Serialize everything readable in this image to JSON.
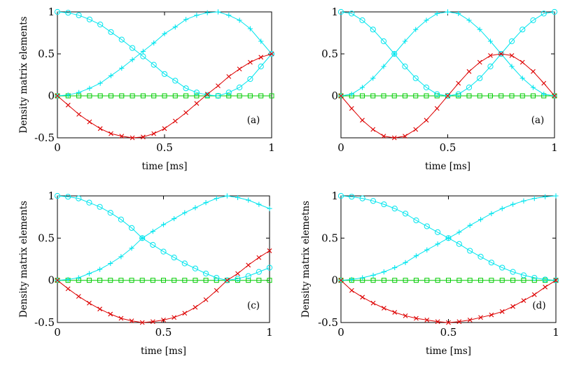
{
  "colors": {
    "cyan": "#00e5ee",
    "red": "#dd0000",
    "green": "#00cc00",
    "axis": "#000000"
  },
  "chart_data": [
    {
      "type": "line",
      "panel_label": "(a)",
      "xlabel": "time [ms]",
      "ylabel": "Density matrix elements",
      "xlim": [
        0,
        1
      ],
      "ylim": [
        -0.5,
        1
      ],
      "xticks": [
        0,
        0.5,
        1
      ],
      "xtick_labels": [
        "0",
        "0.5",
        "1"
      ],
      "yticks": [
        -0.5,
        0,
        0.5,
        1
      ],
      "ytick_labels": [
        "-0.5",
        "0",
        "0.5",
        "1"
      ],
      "series": [
        {
          "name": "plus",
          "color": "cyan",
          "marker": "+",
          "x": [
            0.0,
            0.05,
            0.1,
            0.15,
            0.2,
            0.25,
            0.3,
            0.35,
            0.4,
            0.45,
            0.5,
            0.55,
            0.6,
            0.65,
            0.7,
            0.75,
            0.8,
            0.85,
            0.9,
            0.95,
            1.0
          ],
          "values": [
            0,
            0.01,
            0.04,
            0.09,
            0.15,
            0.24,
            0.33,
            0.43,
            0.53,
            0.63,
            0.74,
            0.82,
            0.91,
            0.96,
            0.99,
            1.0,
            0.96,
            0.9,
            0.8,
            0.65,
            0.5
          ]
        },
        {
          "name": "circle",
          "color": "cyan",
          "marker": "o",
          "x": [
            0.0,
            0.05,
            0.1,
            0.15,
            0.2,
            0.25,
            0.3,
            0.35,
            0.4,
            0.45,
            0.5,
            0.55,
            0.6,
            0.65,
            0.7,
            0.75,
            0.8,
            0.85,
            0.9,
            0.95,
            1.0
          ],
          "values": [
            1,
            0.99,
            0.96,
            0.91,
            0.85,
            0.76,
            0.67,
            0.57,
            0.47,
            0.37,
            0.26,
            0.18,
            0.09,
            0.04,
            0.01,
            0.0,
            0.04,
            0.1,
            0.2,
            0.35,
            0.5
          ]
        },
        {
          "name": "cross",
          "color": "red",
          "marker": "x",
          "x": [
            0.0,
            0.05,
            0.1,
            0.15,
            0.2,
            0.25,
            0.3,
            0.35,
            0.4,
            0.45,
            0.5,
            0.55,
            0.6,
            0.65,
            0.7,
            0.75,
            0.8,
            0.85,
            0.9,
            0.95,
            1.0
          ],
          "values": [
            0,
            -0.11,
            -0.22,
            -0.31,
            -0.39,
            -0.45,
            -0.48,
            -0.5,
            -0.49,
            -0.45,
            -0.39,
            -0.3,
            -0.2,
            -0.09,
            0.02,
            0.12,
            0.23,
            0.32,
            0.4,
            0.46,
            0.5
          ]
        },
        {
          "name": "square",
          "color": "green",
          "marker": "s",
          "x": [
            0.0,
            0.05,
            0.1,
            0.15,
            0.2,
            0.25,
            0.3,
            0.35,
            0.4,
            0.45,
            0.5,
            0.55,
            0.6,
            0.65,
            0.7,
            0.75,
            0.8,
            0.85,
            0.9,
            0.95,
            1.0
          ],
          "values": [
            0,
            0,
            0,
            0,
            0,
            0,
            0,
            0,
            0,
            0,
            0,
            0,
            0,
            0,
            0,
            0,
            0,
            0,
            0,
            0,
            0
          ]
        }
      ]
    },
    {
      "type": "line",
      "panel_label": "(a)",
      "xlabel": "time [ms]",
      "ylabel": "",
      "xlim": [
        0,
        1
      ],
      "ylim": [
        -0.5,
        1
      ],
      "xticks": [
        0,
        0.5,
        1
      ],
      "xtick_labels": [
        "0",
        "0.5",
        "1"
      ],
      "yticks": [
        0,
        0.5,
        1
      ],
      "ytick_labels": [
        "0",
        "0.5",
        "1"
      ],
      "series": [
        {
          "name": "plus",
          "color": "cyan",
          "marker": "+",
          "x": [
            0.0,
            0.05,
            0.1,
            0.15,
            0.2,
            0.25,
            0.3,
            0.35,
            0.4,
            0.45,
            0.5,
            0.55,
            0.6,
            0.65,
            0.7,
            0.75,
            0.8,
            0.85,
            0.9,
            0.95,
            1.0
          ],
          "values": [
            0,
            0.02,
            0.1,
            0.21,
            0.35,
            0.5,
            0.65,
            0.79,
            0.9,
            0.98,
            1.0,
            0.98,
            0.9,
            0.79,
            0.65,
            0.5,
            0.35,
            0.21,
            0.1,
            0.02,
            0
          ]
        },
        {
          "name": "circle",
          "color": "cyan",
          "marker": "o",
          "x": [
            0.0,
            0.05,
            0.1,
            0.15,
            0.2,
            0.25,
            0.3,
            0.35,
            0.4,
            0.45,
            0.5,
            0.55,
            0.6,
            0.65,
            0.7,
            0.75,
            0.8,
            0.85,
            0.9,
            0.95,
            1.0
          ],
          "values": [
            1,
            0.98,
            0.9,
            0.79,
            0.65,
            0.5,
            0.35,
            0.21,
            0.1,
            0.02,
            0,
            0.02,
            0.1,
            0.21,
            0.35,
            0.5,
            0.65,
            0.79,
            0.9,
            0.98,
            1.0
          ]
        },
        {
          "name": "cross",
          "color": "red",
          "marker": "x",
          "x": [
            0.0,
            0.05,
            0.1,
            0.15,
            0.2,
            0.25,
            0.3,
            0.35,
            0.4,
            0.45,
            0.5,
            0.55,
            0.6,
            0.65,
            0.7,
            0.75,
            0.8,
            0.85,
            0.9,
            0.95,
            1.0
          ],
          "values": [
            0,
            -0.15,
            -0.29,
            -0.4,
            -0.48,
            -0.5,
            -0.48,
            -0.4,
            -0.29,
            -0.15,
            0,
            0.15,
            0.29,
            0.4,
            0.48,
            0.5,
            0.48,
            0.4,
            0.29,
            0.15,
            0
          ]
        },
        {
          "name": "square",
          "color": "green",
          "marker": "s",
          "x": [
            0.0,
            0.05,
            0.1,
            0.15,
            0.2,
            0.25,
            0.3,
            0.35,
            0.4,
            0.45,
            0.5,
            0.55,
            0.6,
            0.65,
            0.7,
            0.75,
            0.8,
            0.85,
            0.9,
            0.95,
            1.0
          ],
          "values": [
            0,
            0,
            0,
            0,
            0,
            0,
            0,
            0,
            0,
            0,
            0,
            0,
            0,
            0,
            0,
            0,
            0,
            0,
            0,
            0,
            0
          ]
        }
      ]
    },
    {
      "type": "line",
      "panel_label": "(c)",
      "xlabel": "time [ms]",
      "ylabel": "Density matrix elements",
      "xlim": [
        0,
        1
      ],
      "ylim": [
        -0.5,
        1
      ],
      "xticks": [
        0,
        0.5,
        1
      ],
      "xtick_labels": [
        "0",
        "0.5",
        "1"
      ],
      "yticks": [
        -0.5,
        0,
        0.5,
        1
      ],
      "ytick_labels": [
        "-0.5",
        "0",
        "0.5",
        "1"
      ],
      "series": [
        {
          "name": "plus",
          "color": "cyan",
          "marker": "+",
          "x": [
            0.0,
            0.05,
            0.1,
            0.15,
            0.2,
            0.25,
            0.3,
            0.35,
            0.4,
            0.45,
            0.5,
            0.55,
            0.6,
            0.65,
            0.7,
            0.75,
            0.8,
            0.85,
            0.9,
            0.95,
            1.0
          ],
          "values": [
            0,
            0.01,
            0.03,
            0.08,
            0.13,
            0.2,
            0.28,
            0.38,
            0.5,
            0.58,
            0.66,
            0.73,
            0.8,
            0.86,
            0.92,
            0.97,
            1.0,
            0.98,
            0.95,
            0.9,
            0.85
          ]
        },
        {
          "name": "circle",
          "color": "cyan",
          "marker": "o",
          "x": [
            0.0,
            0.05,
            0.1,
            0.15,
            0.2,
            0.25,
            0.3,
            0.35,
            0.4,
            0.45,
            0.5,
            0.55,
            0.6,
            0.65,
            0.7,
            0.75,
            0.8,
            0.85,
            0.9,
            0.95,
            1.0
          ],
          "values": [
            1,
            0.99,
            0.97,
            0.92,
            0.87,
            0.8,
            0.72,
            0.62,
            0.5,
            0.42,
            0.34,
            0.27,
            0.2,
            0.14,
            0.08,
            0.03,
            0,
            0.02,
            0.05,
            0.1,
            0.15
          ]
        },
        {
          "name": "cross",
          "color": "red",
          "marker": "x",
          "x": [
            0.0,
            0.05,
            0.1,
            0.15,
            0.2,
            0.25,
            0.3,
            0.35,
            0.4,
            0.45,
            0.5,
            0.55,
            0.6,
            0.65,
            0.7,
            0.75,
            0.8,
            0.85,
            0.9,
            0.95,
            1.0
          ],
          "values": [
            0,
            -0.1,
            -0.19,
            -0.27,
            -0.34,
            -0.4,
            -0.45,
            -0.48,
            -0.5,
            -0.49,
            -0.47,
            -0.44,
            -0.39,
            -0.32,
            -0.23,
            -0.12,
            0,
            0.08,
            0.18,
            0.27,
            0.35
          ]
        },
        {
          "name": "square",
          "color": "green",
          "marker": "s",
          "x": [
            0.0,
            0.05,
            0.1,
            0.15,
            0.2,
            0.25,
            0.3,
            0.35,
            0.4,
            0.45,
            0.5,
            0.55,
            0.6,
            0.65,
            0.7,
            0.75,
            0.8,
            0.85,
            0.9,
            0.95,
            1.0
          ],
          "values": [
            0,
            0,
            0,
            0,
            0,
            0,
            0,
            0,
            0,
            0,
            0,
            0,
            0,
            0,
            0,
            0,
            0,
            0,
            0,
            0,
            0
          ]
        }
      ]
    },
    {
      "type": "line",
      "panel_label": "(d)",
      "xlabel": "time [ms]",
      "ylabel": "Density matrix elemetns",
      "xlim": [
        0,
        1
      ],
      "ylim": [
        -0.5,
        1
      ],
      "xticks": [
        0,
        0.5,
        1
      ],
      "xtick_labels": [
        "0",
        "0.5",
        "1"
      ],
      "yticks": [
        -0.5,
        0,
        0.5,
        1
      ],
      "ytick_labels": [
        "-0.5",
        "0",
        "0.5",
        "1"
      ],
      "series": [
        {
          "name": "plus",
          "color": "cyan",
          "marker": "+",
          "x": [
            0.0,
            0.05,
            0.1,
            0.15,
            0.2,
            0.25,
            0.3,
            0.35,
            0.4,
            0.45,
            0.5,
            0.55,
            0.6,
            0.65,
            0.7,
            0.75,
            0.8,
            0.85,
            0.9,
            0.95,
            1.0
          ],
          "values": [
            0,
            0.01,
            0.03,
            0.06,
            0.1,
            0.15,
            0.21,
            0.29,
            0.36,
            0.43,
            0.5,
            0.57,
            0.65,
            0.72,
            0.79,
            0.85,
            0.9,
            0.94,
            0.97,
            0.99,
            1.0
          ]
        },
        {
          "name": "circle",
          "color": "cyan",
          "marker": "o",
          "x": [
            0.0,
            0.05,
            0.1,
            0.15,
            0.2,
            0.25,
            0.3,
            0.35,
            0.4,
            0.45,
            0.5,
            0.55,
            0.6,
            0.65,
            0.7,
            0.75,
            0.8,
            0.85,
            0.9,
            0.95,
            1.0
          ],
          "values": [
            1,
            0.99,
            0.97,
            0.94,
            0.9,
            0.85,
            0.79,
            0.71,
            0.64,
            0.57,
            0.5,
            0.43,
            0.35,
            0.28,
            0.21,
            0.15,
            0.1,
            0.06,
            0.03,
            0.01,
            0
          ]
        },
        {
          "name": "cross",
          "color": "red",
          "marker": "x",
          "x": [
            0.0,
            0.05,
            0.1,
            0.15,
            0.2,
            0.25,
            0.3,
            0.35,
            0.4,
            0.45,
            0.5,
            0.55,
            0.6,
            0.65,
            0.7,
            0.75,
            0.8,
            0.85,
            0.9,
            0.95,
            1.0
          ],
          "values": [
            0,
            -0.12,
            -0.2,
            -0.27,
            -0.33,
            -0.38,
            -0.42,
            -0.45,
            -0.47,
            -0.49,
            -0.5,
            -0.49,
            -0.47,
            -0.44,
            -0.41,
            -0.37,
            -0.31,
            -0.24,
            -0.17,
            -0.08,
            0
          ]
        },
        {
          "name": "square",
          "color": "green",
          "marker": "s",
          "x": [
            0.0,
            0.05,
            0.1,
            0.15,
            0.2,
            0.25,
            0.3,
            0.35,
            0.4,
            0.45,
            0.5,
            0.55,
            0.6,
            0.65,
            0.7,
            0.75,
            0.8,
            0.85,
            0.9,
            0.95,
            1.0
          ],
          "values": [
            0,
            0,
            0,
            0,
            0,
            0,
            0,
            0,
            0,
            0,
            0,
            0,
            0,
            0,
            0,
            0,
            0,
            0,
            0,
            0,
            0
          ]
        }
      ]
    }
  ]
}
